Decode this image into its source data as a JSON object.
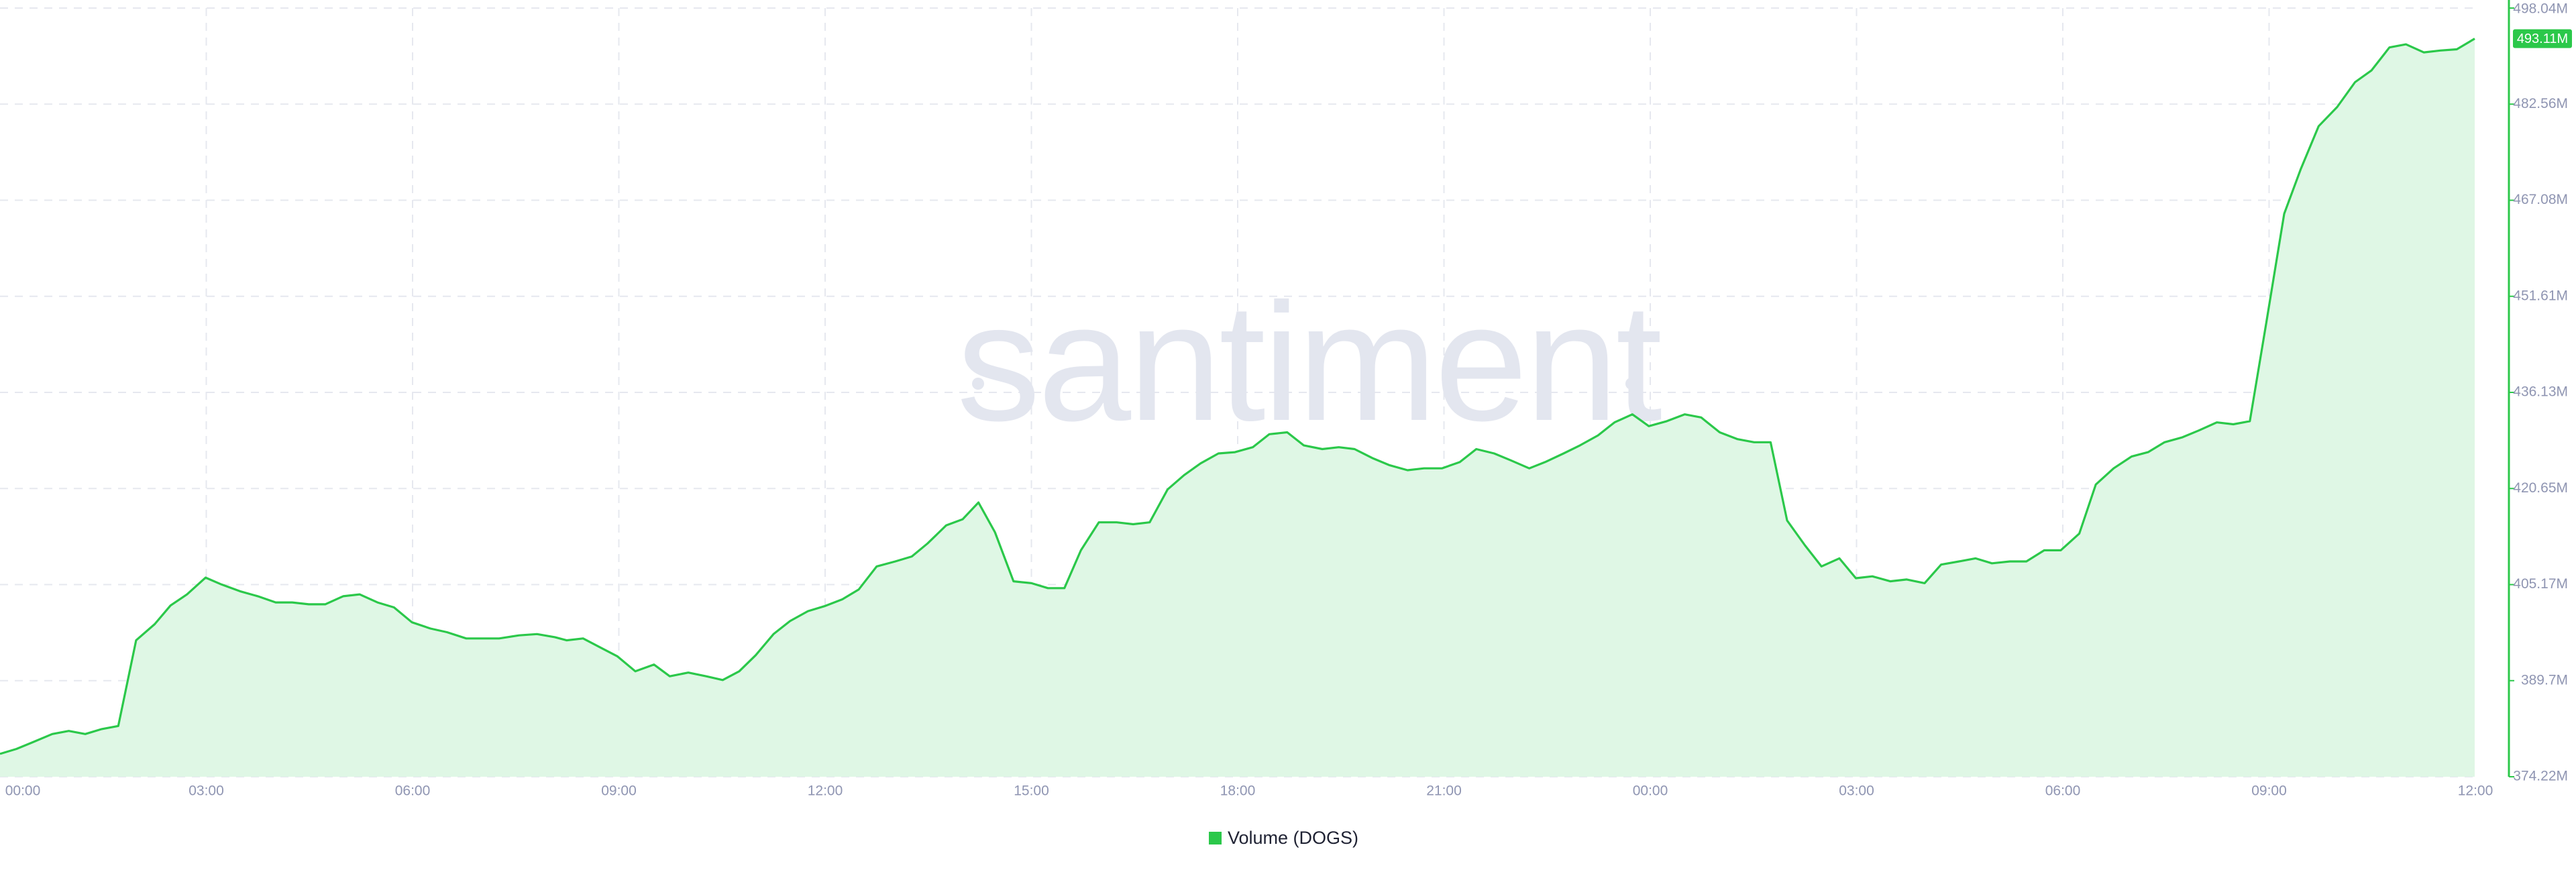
{
  "chart_data": {
    "type": "area",
    "watermark": "santiment",
    "color": "#2bc84a",
    "fill_color": "#dff7e5",
    "grid": true,
    "xlim": [
      0,
      36
    ],
    "xticks": [
      {
        "value": 0,
        "label": "00:00"
      },
      {
        "value": 3,
        "label": "03:00"
      },
      {
        "value": 6,
        "label": "06:00"
      },
      {
        "value": 9,
        "label": "09:00"
      },
      {
        "value": 12,
        "label": "12:00"
      },
      {
        "value": 15,
        "label": "15:00"
      },
      {
        "value": 18,
        "label": "18:00"
      },
      {
        "value": 21,
        "label": "21:00"
      },
      {
        "value": 24,
        "label": "00:00"
      },
      {
        "value": 27,
        "label": "03:00"
      },
      {
        "value": 30,
        "label": "06:00"
      },
      {
        "value": 33,
        "label": "09:00"
      },
      {
        "value": 36,
        "label": "12:00"
      }
    ],
    "ylim": [
      374.22,
      498.04
    ],
    "yticks": [
      {
        "value": 374.22,
        "label": "374.22M"
      },
      {
        "value": 389.7,
        "label": "389.7M"
      },
      {
        "value": 405.17,
        "label": "405.17M"
      },
      {
        "value": 420.65,
        "label": "420.65M"
      },
      {
        "value": 436.13,
        "label": "436.13M"
      },
      {
        "value": 451.61,
        "label": "451.61M"
      },
      {
        "value": 467.08,
        "label": "467.08M"
      },
      {
        "value": 482.56,
        "label": "482.56M"
      },
      {
        "value": 498.04,
        "label": "498.04M"
      }
    ],
    "current_value": {
      "value": 493.11,
      "label": "493.11M"
    },
    "x": [
      0,
      0.24,
      0.48,
      0.76,
      1.0,
      1.24,
      1.48,
      1.72,
      1.98,
      2.25,
      2.48,
      2.72,
      2.99,
      3.22,
      3.49,
      3.75,
      4.01,
      4.25,
      4.49,
      4.73,
      4.99,
      5.23,
      5.49,
      5.73,
      5.99,
      6.26,
      6.5,
      6.78,
      7.26,
      7.55,
      7.81,
      8.07,
      8.24,
      8.48,
      8.72,
      8.98,
      9.24,
      9.51,
      9.74,
      10.01,
      10.27,
      10.51,
      10.75,
      10.99,
      11.25,
      11.49,
      11.75,
      11.99,
      12.25,
      12.49,
      12.75,
      13.02,
      13.26,
      13.49,
      13.76,
      14.0,
      14.23,
      14.47,
      14.74,
      15.0,
      15.24,
      15.48,
      15.72,
      15.98,
      16.24,
      16.48,
      16.72,
      16.98,
      17.22,
      17.46,
      17.72,
      17.96,
      18.22,
      18.46,
      18.72,
      18.96,
      19.23,
      19.47,
      19.7,
      19.97,
      20.21,
      20.47,
      20.71,
      20.97,
      21.23,
      21.47,
      21.73,
      21.97,
      22.24,
      22.47,
      22.74,
      22.98,
      23.24,
      23.48,
      23.74,
      23.98,
      24.24,
      24.5,
      24.74,
      25.01,
      25.27,
      25.51,
      25.75,
      25.99,
      26.25,
      26.49,
      26.75,
      26.99,
      27.23,
      27.49,
      27.73,
      27.99,
      28.23,
      28.49,
      28.73,
      28.97,
      29.23,
      29.47,
      29.73,
      29.97,
      30.24,
      30.48,
      30.74,
      31.0,
      31.24,
      31.48,
      31.74,
      31.98,
      32.24,
      32.48,
      32.72,
      32.96,
      33.22,
      33.46,
      33.72,
      33.99,
      34.25,
      34.49,
      34.75,
      34.99,
      35.25,
      35.49,
      35.73,
      35.99
    ],
    "series": [
      {
        "name": "Volume (DOGS)",
        "color": "#2bc84a",
        "values": [
          377.9,
          378.7,
          379.8,
          381.1,
          381.6,
          381.1,
          381.9,
          382.4,
          396.2,
          398.8,
          401.8,
          403.6,
          406.3,
          405.2,
          404.1,
          403.3,
          402.3,
          402.3,
          402.0,
          402.0,
          403.3,
          403.6,
          402.3,
          401.5,
          399.1,
          398.1,
          397.5,
          396.5,
          396.5,
          397.0,
          397.2,
          396.7,
          396.2,
          396.5,
          395.1,
          393.6,
          391.2,
          392.3,
          390.4,
          391.0,
          390.4,
          389.8,
          391.2,
          393.8,
          397.2,
          399.3,
          400.9,
          401.7,
          402.8,
          404.4,
          408.1,
          408.9,
          409.7,
          411.8,
          414.7,
          415.7,
          418.4,
          413.6,
          405.7,
          405.4,
          404.6,
          404.6,
          410.7,
          415.2,
          415.2,
          414.9,
          415.2,
          420.5,
          422.8,
          424.7,
          426.3,
          426.5,
          427.3,
          429.4,
          429.7,
          427.6,
          427.0,
          427.3,
          427.0,
          425.5,
          424.4,
          423.6,
          423.9,
          423.9,
          424.9,
          427.0,
          426.3,
          425.2,
          423.9,
          424.9,
          426.3,
          427.6,
          429.2,
          431.3,
          432.6,
          430.7,
          431.5,
          432.6,
          432.1,
          429.7,
          428.6,
          428.1,
          428.1,
          415.5,
          411.5,
          408.1,
          409.4,
          406.2,
          406.5,
          405.7,
          406.0,
          405.4,
          408.4,
          408.9,
          409.4,
          408.6,
          408.9,
          408.9,
          410.7,
          410.7,
          413.4,
          421.3,
          423.9,
          425.8,
          426.5,
          428.1,
          428.9,
          430.0,
          431.3,
          431.0,
          431.5,
          447.4,
          464.9,
          472.1,
          479.0,
          482.1,
          486.1,
          488.0,
          491.7,
          492.2,
          490.9,
          491.2,
          491.4,
          493.11
        ]
      }
    ]
  }
}
